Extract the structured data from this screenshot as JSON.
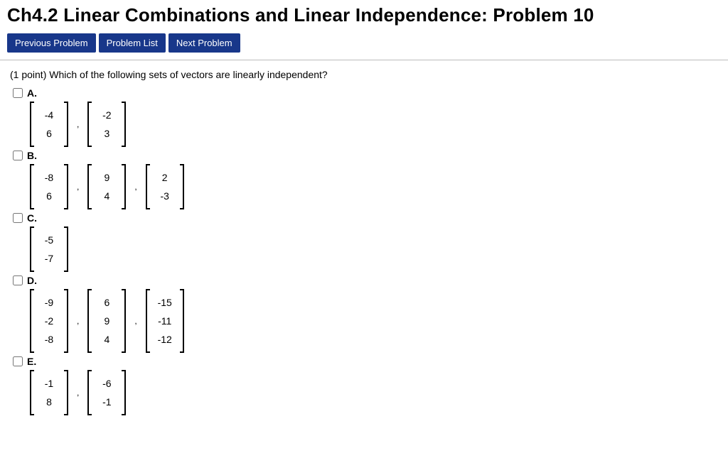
{
  "title": "Ch4.2  Linear Combinations and Linear Independence: Problem 10",
  "nav": {
    "prev": "Previous Problem",
    "list": "Problem List",
    "next": "Next Problem"
  },
  "prompt_points": "(1 point)",
  "prompt_text": " Which of the following sets of vectors are linearly independent?",
  "colors": {
    "button_bg": "#18378a",
    "button_fg": "#ffffff",
    "text": "#000000",
    "rule": "#bcbcbc",
    "background": "#ffffff"
  },
  "options": [
    {
      "label": "A.",
      "checked": false,
      "vectors": [
        [
          "-4",
          "6"
        ],
        [
          "-2",
          "3"
        ]
      ]
    },
    {
      "label": "B.",
      "checked": false,
      "vectors": [
        [
          "-8",
          "6"
        ],
        [
          "9",
          "4"
        ],
        [
          "2",
          "-3"
        ]
      ]
    },
    {
      "label": "C.",
      "checked": false,
      "vectors": [
        [
          "-5",
          "-7"
        ]
      ]
    },
    {
      "label": "D.",
      "checked": false,
      "vectors": [
        [
          "-9",
          "-2",
          "-8"
        ],
        [
          "6",
          "9",
          "4"
        ],
        [
          "-15",
          "-11",
          "-12"
        ]
      ]
    },
    {
      "label": "E.",
      "checked": false,
      "vectors": [
        [
          "-1",
          "8"
        ],
        [
          "-6",
          "-1"
        ]
      ]
    }
  ]
}
